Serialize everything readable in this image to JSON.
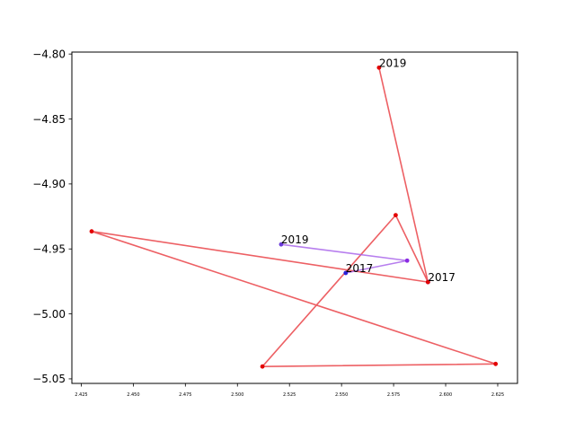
{
  "chart_data": {
    "type": "line",
    "title": "",
    "xlabel": "",
    "ylabel": "",
    "xlim": [
      2.4205,
      2.6345
    ],
    "ylim": [
      -5.0535,
      -4.7985
    ],
    "grid": false,
    "x_ticks": [
      "2.425",
      "2.450",
      "2.475",
      "2.500",
      "2.525",
      "2.550",
      "2.575",
      "2.600",
      "2.625"
    ],
    "y_ticks": [
      "−4.80",
      "−4.85",
      "−4.90",
      "−4.95",
      "−5.00",
      "−5.05"
    ],
    "series": [
      {
        "color": "#e8383d",
        "point_colors": [
          "#0a1ad9",
          "#e30000",
          "#e30000",
          "#e30000",
          "#e30000",
          "#e30000",
          "#e30000"
        ],
        "points": [
          {
            "x": 2.5915,
            "y": -4.9755
          },
          {
            "x": 2.43,
            "y": -4.9365
          },
          {
            "x": 2.624,
            "y": -5.0385
          },
          {
            "x": 2.512,
            "y": -5.0405
          },
          {
            "x": 2.576,
            "y": -4.924
          },
          {
            "x": 2.5915,
            "y": -4.9755
          },
          {
            "x": 2.568,
            "y": -4.8105
          }
        ]
      },
      {
        "color": "#a55eea",
        "point_colors": [
          "#2a22d8",
          "#8a2be2",
          "#6a3bd8"
        ],
        "points": [
          {
            "x": 2.552,
            "y": -4.9685
          },
          {
            "x": 2.5815,
            "y": -4.959
          },
          {
            "x": 2.521,
            "y": -4.9465
          }
        ]
      }
    ],
    "annotations": [
      {
        "text": "2017",
        "x": 2.5915,
        "y": -4.9755
      },
      {
        "text": "2019",
        "x": 2.568,
        "y": -4.8105
      },
      {
        "text": "2017",
        "x": 2.552,
        "y": -4.9685
      },
      {
        "text": "2019",
        "x": 2.521,
        "y": -4.9465
      }
    ]
  }
}
